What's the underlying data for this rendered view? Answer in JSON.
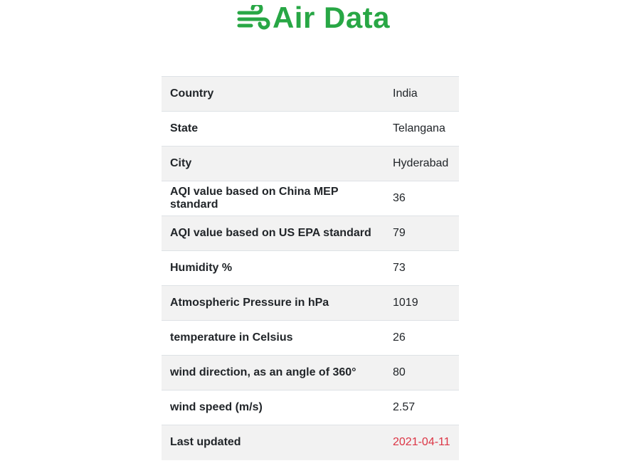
{
  "header": {
    "title": "Air Data",
    "icon": "wind-icon",
    "accent_color": "#28a745"
  },
  "table": {
    "rows": [
      {
        "label": "Country",
        "value": "India"
      },
      {
        "label": "State",
        "value": "Telangana"
      },
      {
        "label": "City",
        "value": "Hyderabad"
      },
      {
        "label": "AQI value based on China MEP standard",
        "value": "36"
      },
      {
        "label": "AQI value based on US EPA standard",
        "value": "79"
      },
      {
        "label": "Humidity %",
        "value": "73"
      },
      {
        "label": "Atmospheric Pressure in hPa",
        "value": "1019"
      },
      {
        "label": "temperature in Celsius",
        "value": "26"
      },
      {
        "label": "wind direction, as an angle of 360°",
        "value": "80"
      },
      {
        "label": "wind speed (m/s)",
        "value": "2.57"
      },
      {
        "label": "Last updated",
        "value": "2021-04-11"
      }
    ],
    "highlight_color": "#dc3545"
  }
}
